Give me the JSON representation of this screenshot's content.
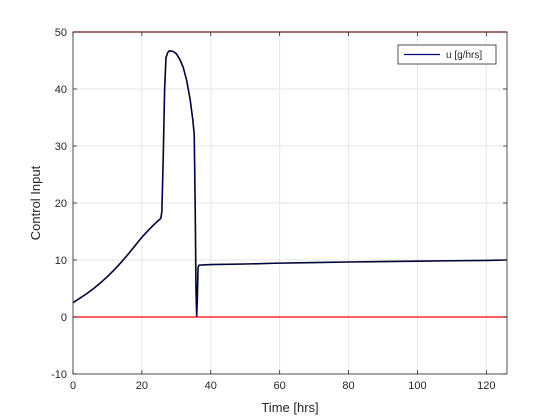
{
  "chart_data": {
    "type": "line",
    "xlabel": "Time [hrs]",
    "ylabel": "Control Input",
    "xlim": [
      0,
      126
    ],
    "ylim": [
      -10,
      50
    ],
    "xticks": [
      0,
      20,
      40,
      60,
      80,
      100,
      120
    ],
    "yticks": [
      -10,
      0,
      10,
      20,
      30,
      40,
      50
    ],
    "grid": true,
    "legend_position": "top-right",
    "colors": {
      "series": "#000080",
      "bounds": "#ff0000",
      "grid": "#e6e6e6",
      "axes": "#262626"
    },
    "series": [
      {
        "name": "u [g/hrs]",
        "x": [
          0,
          1,
          2,
          4,
          6,
          8,
          10,
          12,
          14,
          16,
          18,
          20,
          22,
          24,
          25.5,
          25.8,
          26.2,
          26.6,
          27,
          27.5,
          28,
          29,
          30,
          31,
          32,
          33,
          34,
          34.8,
          35.2,
          35.5,
          35.7,
          35.9,
          36.1,
          36.3,
          36.6,
          40,
          50,
          60,
          70,
          80,
          90,
          100,
          110,
          120,
          126
        ],
        "y": [
          2.5,
          2.9,
          3.3,
          4.1,
          5.0,
          6.0,
          7.1,
          8.3,
          9.6,
          11.0,
          12.5,
          14.0,
          15.3,
          16.5,
          17.3,
          18.5,
          28,
          40,
          45.5,
          46.4,
          46.7,
          46.6,
          46.2,
          45.2,
          43.8,
          41.5,
          38.2,
          34.5,
          32,
          18,
          5,
          0.2,
          3,
          8.7,
          9.1,
          9.2,
          9.3,
          9.45,
          9.55,
          9.65,
          9.72,
          9.8,
          9.87,
          9.93,
          10.0
        ]
      }
    ],
    "bounds": [
      0,
      50
    ]
  }
}
